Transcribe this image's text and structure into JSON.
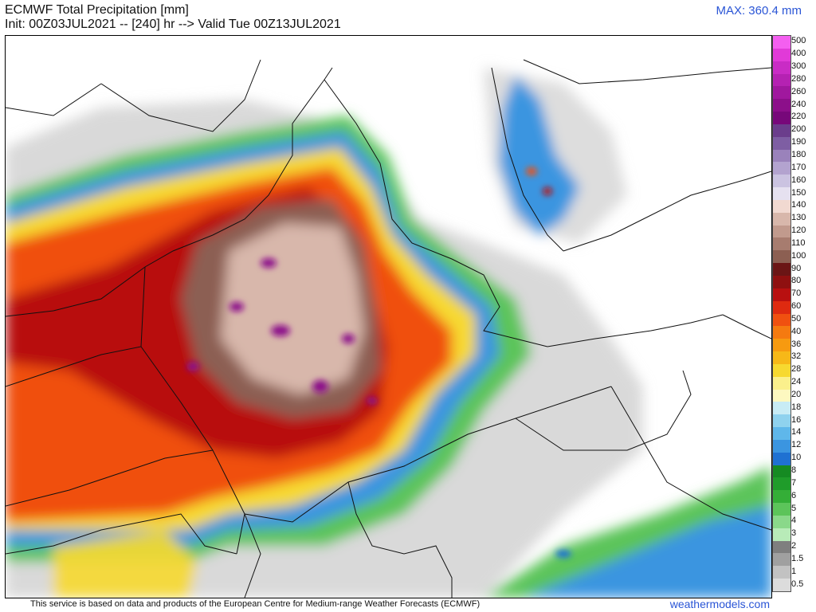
{
  "header": {
    "title": "ECMWF Total Precipitation [mm]",
    "subtitle": "Init: 00Z03JUL2021 -- [240] hr --> Valid Tue 00Z13JUL2021",
    "max_label": "MAX: 360.4 mm"
  },
  "legend": {
    "levels": [
      "500",
      "400",
      "300",
      "280",
      "260",
      "240",
      "220",
      "200",
      "190",
      "180",
      "170",
      "160",
      "150",
      "140",
      "130",
      "120",
      "110",
      "100",
      "90",
      "80",
      "70",
      "60",
      "50",
      "40",
      "36",
      "32",
      "28",
      "24",
      "20",
      "18",
      "16",
      "14",
      "12",
      "10",
      "8",
      "7",
      "6",
      "5",
      "4",
      "3",
      "2",
      "1.5",
      "1",
      "0.5"
    ],
    "colors": [
      "#f45ff0",
      "#e13ad8",
      "#c92cc5",
      "#b522b2",
      "#a0189e",
      "#8c0f8a",
      "#77087a",
      "#6b3d8c",
      "#7e5ea3",
      "#9a82bb",
      "#b3a3cf",
      "#cbc3e1",
      "#e6e1f0",
      "#f1d9d1",
      "#d8b7ab",
      "#c19a8d",
      "#a77c6f",
      "#8c5f52",
      "#6b1515",
      "#8f1010",
      "#b81010",
      "#de2a10",
      "#f05010",
      "#f57a10",
      "#f79a10",
      "#f7b818",
      "#f7d930",
      "#fbf08c",
      "#fdf8c0",
      "#c8ecf5",
      "#8fd2ee",
      "#5fb7ea",
      "#3b95e0",
      "#1f71d2",
      "#158a22",
      "#1f9c2a",
      "#34ae37",
      "#5cc45a",
      "#8ad88a",
      "#b8ebb8",
      "#7f7f7f",
      "#a0a0a0",
      "#c2c2c2",
      "#dcdcdc"
    ]
  },
  "footer": {
    "attribution": "This service is based on data and products of the European Centre for Medium-range Weather Forecasts (ECMWF)",
    "brand": "weathermodels.com"
  }
}
